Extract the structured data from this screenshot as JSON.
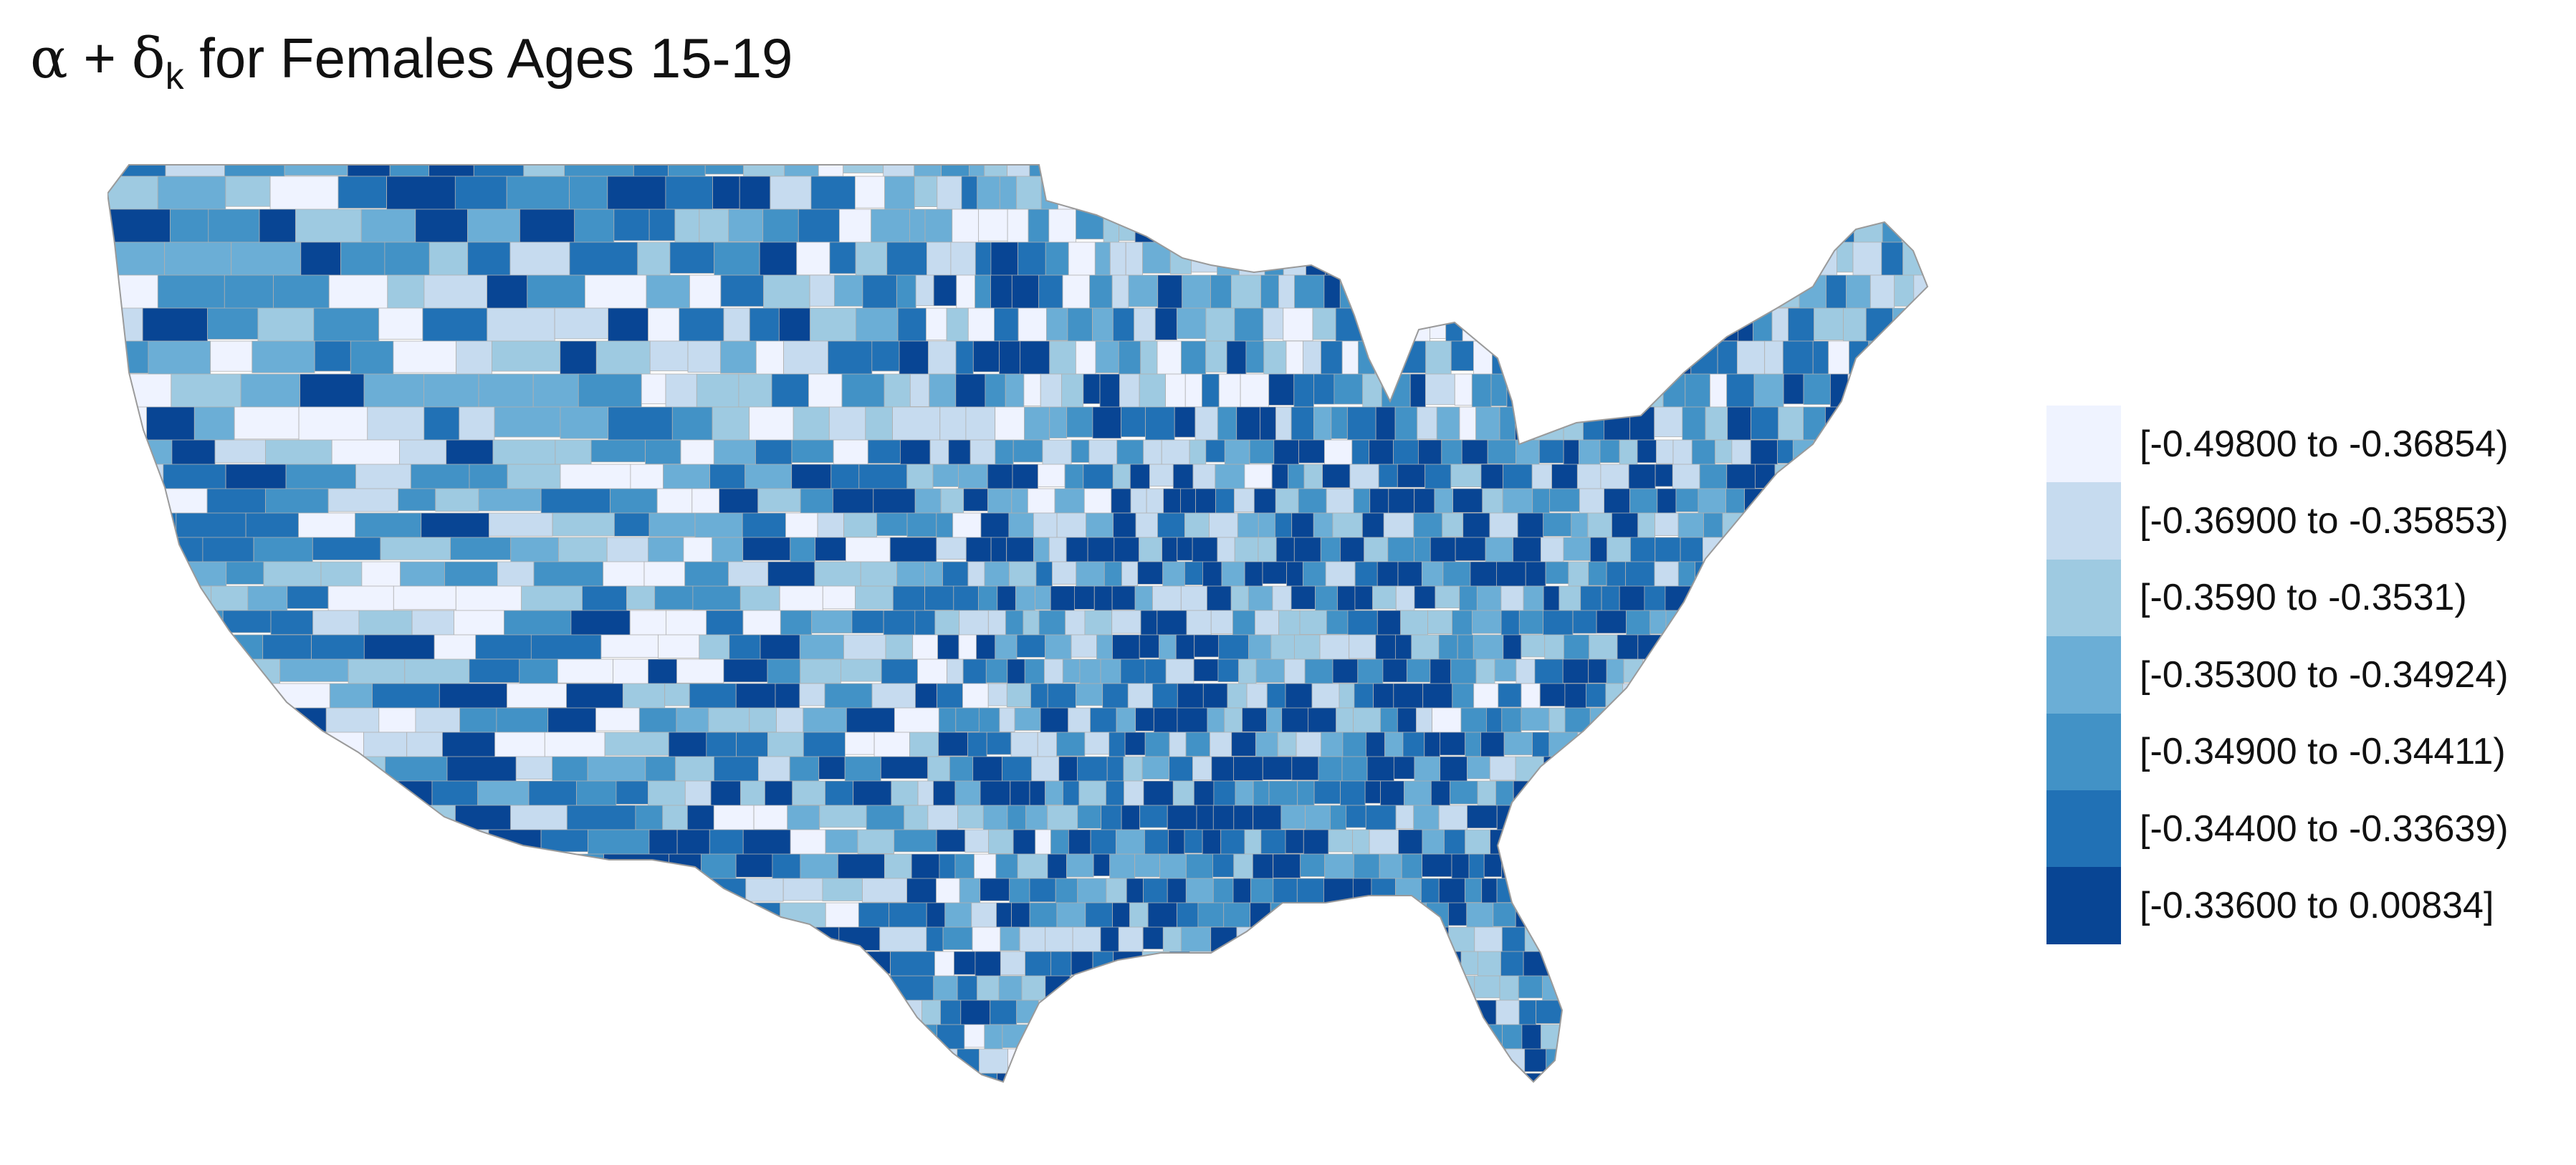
{
  "title": {
    "alpha": "α",
    "plus": " + ",
    "delta": "δ",
    "subscript": "k",
    "rest": " for Females Ages 15-19"
  },
  "legend": {
    "items": [
      {
        "label": "[-0.49800 to -0.36854)",
        "color": "#eff3ff"
      },
      {
        "label": "[-0.36900 to -0.35853)",
        "color": "#c6dbef"
      },
      {
        "label": "[-0.3590 to -0.3531)",
        "color": "#9ecae1"
      },
      {
        "label": "[-0.35300 to -0.34924)",
        "color": "#6baed6"
      },
      {
        "label": "[-0.34900 to -0.34411)",
        "color": "#4292c6"
      },
      {
        "label": "[-0.34400 to -0.33639)",
        "color": "#2171b5"
      },
      {
        "label": "[-0.33600 to 0.00834]",
        "color": "#084594"
      }
    ]
  },
  "map": {
    "region": "Contiguous United States, county-level choropleth",
    "border_color": "#b0b0b0"
  }
}
